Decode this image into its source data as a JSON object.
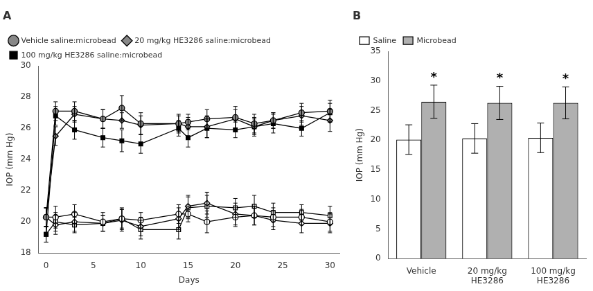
{
  "chart_data": [
    {
      "type": "line",
      "title": "A",
      "xlabel": "Days",
      "ylabel": "IOP (mm Hg)",
      "x": [
        0,
        1,
        3,
        6,
        8,
        10,
        14,
        15,
        17,
        20,
        22,
        24,
        27,
        30
      ],
      "xlim": [
        -0.8,
        31
      ],
      "xticks": [
        0,
        5,
        10,
        15,
        20,
        25,
        30
      ],
      "ylim": [
        18,
        30
      ],
      "yticks": [
        18,
        20,
        22,
        24,
        26,
        28,
        30
      ],
      "grid": false,
      "legend": "upper left",
      "series": [
        {
          "name": "Vehicle saline:microbead",
          "color": "#888888",
          "marker": "circle",
          "values": [
            20.3,
            27.1,
            27.1,
            26.6,
            27.3,
            26.3,
            26.3,
            26.4,
            26.6,
            26.7,
            26.3,
            26.5,
            27.0,
            27.1
          ],
          "errors": [
            0.6,
            0.6,
            0.6,
            0.6,
            0.8,
            0.7,
            0.6,
            0.5,
            0.6,
            0.7,
            0.6,
            0.5,
            0.6,
            0.7
          ]
        },
        {
          "name": "20 mg/kg HE3286 saline:microbead",
          "color": "#888888",
          "marker": "diamond",
          "values": [
            20.3,
            25.5,
            26.9,
            26.6,
            26.5,
            26.2,
            26.3,
            26.1,
            26.1,
            26.6,
            26.1,
            26.5,
            26.8,
            26.5
          ],
          "errors": [
            0.6,
            0.6,
            0.5,
            0.6,
            0.5,
            0.6,
            0.5,
            0.6,
            0.7,
            0.6,
            0.6,
            0.5,
            0.6,
            0.7
          ]
        },
        {
          "name": "100 mg/kg HE3286 saline:microbead",
          "color": "#000000",
          "marker": "square",
          "values": [
            19.2,
            26.8,
            25.9,
            25.4,
            25.2,
            25.0,
            26.0,
            25.4,
            26.0,
            25.9,
            26.1,
            26.3,
            26.0,
            27.0
          ],
          "errors": [
            0.5,
            0.6,
            0.6,
            0.6,
            0.7,
            0.6,
            0.5,
            0.6,
            0.6,
            0.5,
            0.5,
            0.6,
            0.5,
            0.6
          ]
        },
        {
          "color": "#ffffff",
          "marker": "circle",
          "values": [
            20.3,
            20.3,
            20.5,
            20.0,
            20.2,
            20.1,
            20.5,
            20.5,
            20.0,
            20.3,
            20.4,
            20.3,
            20.3,
            20.0
          ],
          "errors": [
            0.6,
            0.7,
            0.6,
            0.6,
            0.7,
            0.5,
            0.6,
            0.5,
            0.7,
            0.6,
            0.6,
            0.6,
            0.5,
            0.6
          ]
        },
        {
          "color": "#ffffff",
          "marker": "diamond",
          "values": [
            20.3,
            19.8,
            20.0,
            19.9,
            20.1,
            19.7,
            20.2,
            21.0,
            21.2,
            20.5,
            20.4,
            20.1,
            19.9,
            19.9
          ],
          "errors": [
            0.6,
            0.6,
            0.6,
            0.5,
            0.7,
            0.6,
            0.7,
            0.7,
            0.7,
            0.7,
            0.6,
            0.6,
            0.6,
            0.6
          ]
        },
        {
          "color": "#ffffff",
          "marker": "square",
          "values": [
            19.2,
            20.0,
            19.8,
            19.9,
            20.2,
            19.5,
            19.5,
            20.9,
            21.0,
            20.9,
            21.0,
            20.6,
            20.6,
            20.4
          ],
          "errors": [
            0.5,
            0.6,
            0.5,
            0.5,
            0.6,
            0.6,
            0.6,
            0.7,
            0.7,
            0.6,
            0.7,
            0.6,
            0.5,
            0.6
          ]
        }
      ]
    },
    {
      "type": "bar",
      "title": "B",
      "ylabel": "IOP (mm Hg)",
      "categories": [
        "Vehicle",
        "20 mg/kg\nHE3286",
        "100 mg/kg\nHE3286"
      ],
      "ylim": [
        0,
        35
      ],
      "yticks": [
        0,
        5,
        10,
        15,
        20,
        25,
        30,
        35
      ],
      "grid": false,
      "legend": "upper left",
      "series": [
        {
          "name": "Saline",
          "color": "#ffffff",
          "values": [
            20.1,
            20.3,
            20.4
          ],
          "errors": [
            2.5,
            2.5,
            2.5
          ]
        },
        {
          "name": "Microbead",
          "color": "#b0b0b0",
          "values": [
            26.5,
            26.3,
            26.3
          ],
          "errors": [
            2.8,
            2.8,
            2.7
          ]
        }
      ],
      "annotations": [
        {
          "text": "*",
          "series": "Microbead",
          "category": "Vehicle"
        },
        {
          "text": "*",
          "series": "Microbead",
          "category": "20 mg/kg\nHE3286"
        },
        {
          "text": "*",
          "series": "Microbead",
          "category": "100 mg/kg\nHE3286"
        }
      ]
    }
  ]
}
